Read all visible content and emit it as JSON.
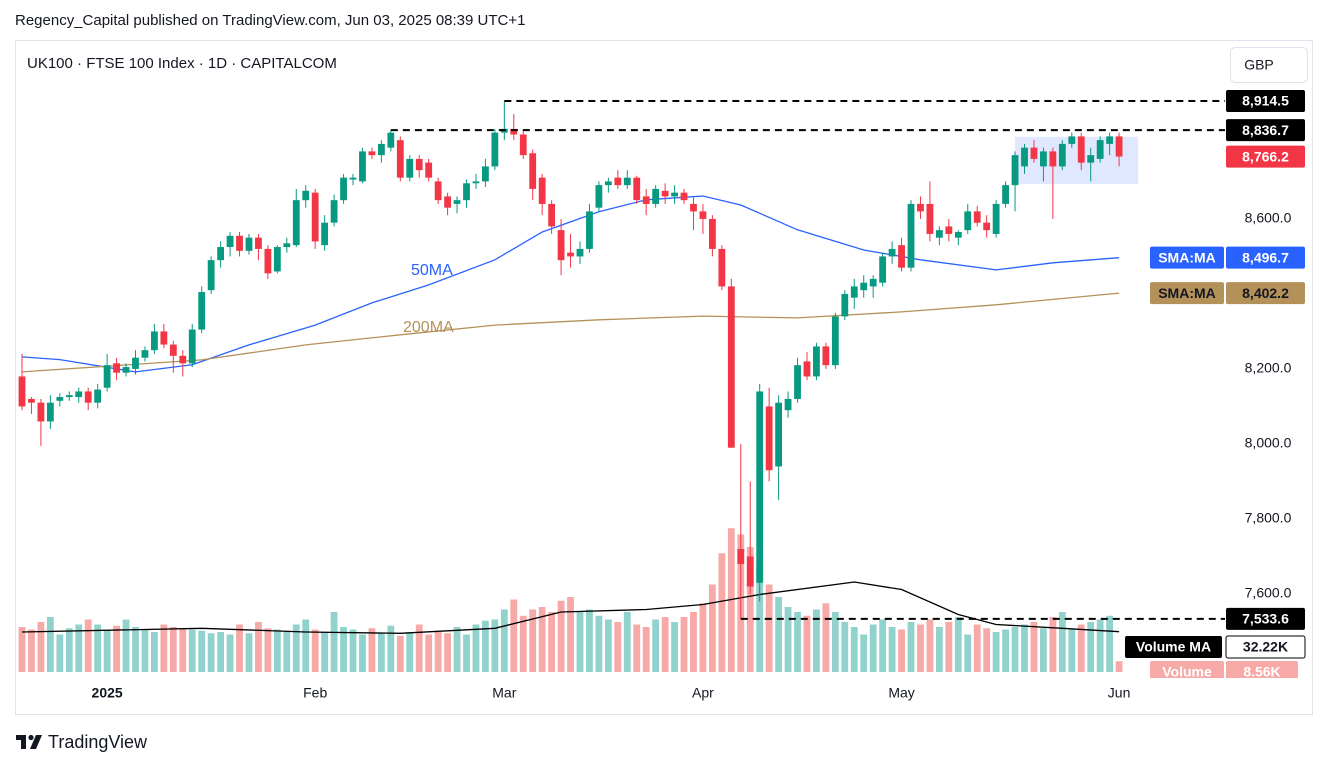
{
  "header": {
    "publisher": "Regency_Capital published on TradingView.com, Jun 03, 2025 08:39 UTC+1",
    "logo": "TradingView"
  },
  "chart_data": {
    "type": "candlestick",
    "title": "UK100 · FTSE 100 Index · 1D · CAPITALCOM",
    "currency": "GBP",
    "colors": {
      "up": "#089981",
      "down": "#f23645",
      "volume_up": "#92d2cc",
      "volume_down": "#f7a9a7"
    },
    "grid": false,
    "xlim": [
      -0.74,
      127.2
    ],
    "ylim": [
      7392,
      9077
    ],
    "xticks": [
      {
        "value": 9,
        "label": "2025"
      },
      {
        "value": 31,
        "label": "Feb"
      },
      {
        "value": 51,
        "label": "Mar"
      },
      {
        "value": 72,
        "label": "Apr"
      },
      {
        "value": 93,
        "label": "May"
      },
      {
        "value": 116,
        "label": "Jun"
      }
    ],
    "yticks": [
      {
        "value": 7600,
        "label": "7,600.0"
      },
      {
        "value": 7800,
        "label": "7,800.0"
      },
      {
        "value": 8000,
        "label": "8,000.0"
      },
      {
        "value": 8200,
        "label": "8,200.0"
      },
      {
        "value": 8600,
        "label": "8,600.0"
      }
    ],
    "ohlc": [
      [
        8180,
        8240,
        8090,
        8100
      ],
      [
        8120,
        8125,
        8080,
        8110
      ],
      [
        8110,
        8120,
        7995,
        8060
      ],
      [
        8060,
        8130,
        8040,
        8110
      ],
      [
        8115,
        8135,
        8100,
        8125
      ],
      [
        8125,
        8140,
        8115,
        8130
      ],
      [
        8125,
        8150,
        8110,
        8140
      ],
      [
        8140,
        8150,
        8090,
        8110
      ],
      [
        8110,
        8160,
        8095,
        8145
      ],
      [
        8150,
        8240,
        8140,
        8210
      ],
      [
        8215,
        8230,
        8170,
        8190
      ],
      [
        8190,
        8215,
        8180,
        8205
      ],
      [
        8200,
        8250,
        8185,
        8230
      ],
      [
        8230,
        8260,
        8220,
        8250
      ],
      [
        8250,
        8320,
        8240,
        8300
      ],
      [
        8300,
        8320,
        8255,
        8265
      ],
      [
        8265,
        8275,
        8190,
        8235
      ],
      [
        8235,
        8250,
        8180,
        8215
      ],
      [
        8215,
        8320,
        8205,
        8305
      ],
      [
        8305,
        8420,
        8295,
        8405
      ],
      [
        8410,
        8500,
        8400,
        8490
      ],
      [
        8490,
        8540,
        8470,
        8525
      ],
      [
        8525,
        8565,
        8500,
        8555
      ],
      [
        8555,
        8565,
        8500,
        8515
      ],
      [
        8515,
        8560,
        8505,
        8550
      ],
      [
        8550,
        8560,
        8490,
        8520
      ],
      [
        8520,
        8530,
        8440,
        8455
      ],
      [
        8460,
        8530,
        8455,
        8525
      ],
      [
        8525,
        8550,
        8510,
        8535
      ],
      [
        8530,
        8680,
        8525,
        8650
      ],
      [
        8650,
        8690,
        8630,
        8675
      ],
      [
        8670,
        8680,
        8520,
        8540
      ],
      [
        8530,
        8610,
        8515,
        8590
      ],
      [
        8590,
        8665,
        8580,
        8650
      ],
      [
        8650,
        8720,
        8640,
        8710
      ],
      [
        8705,
        8720,
        8690,
        8710
      ],
      [
        8700,
        8790,
        8695,
        8780
      ],
      [
        8780,
        8790,
        8760,
        8770
      ],
      [
        8770,
        8810,
        8750,
        8800
      ],
      [
        8790,
        8837,
        8780,
        8830
      ],
      [
        8810,
        8820,
        8700,
        8710
      ],
      [
        8710,
        8770,
        8700,
        8760
      ],
      [
        8760,
        8770,
        8710,
        8730
      ],
      [
        8750,
        8760,
        8700,
        8710
      ],
      [
        8700,
        8710,
        8640,
        8650
      ],
      [
        8660,
        8670,
        8610,
        8630
      ],
      [
        8640,
        8660,
        8615,
        8650
      ],
      [
        8650,
        8705,
        8630,
        8695
      ],
      [
        8695,
        8720,
        8680,
        8700
      ],
      [
        8700,
        8760,
        8685,
        8740
      ],
      [
        8740,
        8840,
        8730,
        8830
      ],
      [
        8830,
        8914.5,
        8810,
        8840
      ],
      [
        8840,
        8880,
        8810,
        8825
      ],
      [
        8825,
        8835,
        8760,
        8770
      ],
      [
        8775,
        8785,
        8650,
        8680
      ],
      [
        8710,
        8720,
        8610,
        8640
      ],
      [
        8640,
        8650,
        8560,
        8580
      ],
      [
        8570,
        8600,
        8450,
        8490
      ],
      [
        8510,
        8560,
        8470,
        8500
      ],
      [
        8500,
        8540,
        8480,
        8520
      ],
      [
        8520,
        8640,
        8510,
        8620
      ],
      [
        8630,
        8700,
        8620,
        8690
      ],
      [
        8690,
        8710,
        8670,
        8700
      ],
      [
        8710,
        8730,
        8680,
        8690
      ],
      [
        8690,
        8730,
        8680,
        8710
      ],
      [
        8710,
        8715,
        8640,
        8650
      ],
      [
        8660,
        8680,
        8610,
        8640
      ],
      [
        8640,
        8690,
        8630,
        8680
      ],
      [
        8675,
        8695,
        8640,
        8660
      ],
      [
        8660,
        8690,
        8640,
        8670
      ],
      [
        8670,
        8680,
        8640,
        8650
      ],
      [
        8640,
        8660,
        8570,
        8620
      ],
      [
        8620,
        8640,
        8560,
        8600
      ],
      [
        8600,
        8610,
        8500,
        8520
      ],
      [
        8520,
        8530,
        8410,
        8420
      ],
      [
        8420,
        8440,
        7990,
        7990
      ],
      [
        7720,
        8000,
        7533.6,
        7680
      ],
      [
        7700,
        7900,
        7600,
        7620
      ],
      [
        7630,
        8160,
        7580,
        8140
      ],
      [
        8100,
        8150,
        7900,
        7930
      ],
      [
        7940,
        8130,
        7850,
        8110
      ],
      [
        8090,
        8140,
        8070,
        8120
      ],
      [
        8120,
        8230,
        8110,
        8210
      ],
      [
        8220,
        8245,
        8170,
        8180
      ],
      [
        8180,
        8270,
        8170,
        8260
      ],
      [
        8260,
        8270,
        8200,
        8210
      ],
      [
        8210,
        8350,
        8200,
        8340
      ],
      [
        8340,
        8410,
        8330,
        8400
      ],
      [
        8390,
        8440,
        8360,
        8420
      ],
      [
        8410,
        8450,
        8390,
        8430
      ],
      [
        8420,
        8450,
        8390,
        8440
      ],
      [
        8430,
        8510,
        8420,
        8500
      ],
      [
        8500,
        8540,
        8480,
        8520
      ],
      [
        8530,
        8550,
        8460,
        8470
      ],
      [
        8470,
        8650,
        8460,
        8640
      ],
      [
        8640,
        8660,
        8600,
        8620
      ],
      [
        8640,
        8700,
        8540,
        8560
      ],
      [
        8550,
        8580,
        8530,
        8570
      ],
      [
        8580,
        8600,
        8540,
        8560
      ],
      [
        8550,
        8570,
        8530,
        8565
      ],
      [
        8570,
        8640,
        8560,
        8620
      ],
      [
        8620,
        8635,
        8580,
        8590
      ],
      [
        8590,
        8610,
        8550,
        8570
      ],
      [
        8560,
        8650,
        8550,
        8640
      ],
      [
        8640,
        8700,
        8630,
        8690
      ],
      [
        8690,
        8780,
        8620,
        8770
      ],
      [
        8740,
        8800,
        8720,
        8790
      ],
      [
        8790,
        8810,
        8750,
        8760
      ],
      [
        8740,
        8790,
        8700,
        8780
      ],
      [
        8780,
        8790,
        8600,
        8740
      ],
      [
        8740,
        8810,
        8730,
        8800
      ],
      [
        8800,
        8830,
        8790,
        8820
      ],
      [
        8820,
        8830,
        8730,
        8750
      ],
      [
        8750,
        8790,
        8700,
        8770
      ],
      [
        8760,
        8820,
        8750,
        8810
      ],
      [
        8800,
        8830,
        8770,
        8820
      ],
      [
        8820,
        8830,
        8740,
        8766.2
      ]
    ],
    "last_price_label": "8,766.2",
    "volume": {
      "name": "Volume",
      "last_label": "8.56K",
      "values": [
        36000,
        34000,
        40000,
        44000,
        30000,
        35000,
        38000,
        42000,
        38000,
        33000,
        37000,
        42000,
        36000,
        34000,
        32000,
        38000,
        36000,
        35000,
        34000,
        33000,
        31000,
        32000,
        30000,
        38000,
        31000,
        40000,
        35000,
        34000,
        33000,
        38000,
        42000,
        34000,
        32000,
        48000,
        36000,
        34000,
        30000,
        35000,
        31000,
        37000,
        29000,
        32000,
        38000,
        30000,
        33000,
        31000,
        36000,
        30000,
        38000,
        41000,
        42000,
        50000,
        58000,
        45000,
        50000,
        52000,
        48000,
        57000,
        60000,
        48000,
        50000,
        45000,
        42000,
        40000,
        48000,
        38000,
        36000,
        42000,
        44000,
        40000,
        44000,
        48000,
        55000,
        70000,
        95000,
        115000,
        110000,
        100000,
        85000,
        70000,
        60000,
        52000,
        48000,
        45000,
        50000,
        55000,
        48000,
        40000,
        36000,
        30000,
        38000,
        42000,
        36000,
        34000,
        40000,
        38000,
        42000,
        36000,
        40000,
        44000,
        30000,
        38000,
        35000,
        32000,
        34000,
        36000,
        38000,
        40000,
        35000,
        44000,
        48000,
        34000,
        38000,
        40000,
        42000,
        45000,
        8560
      ]
    },
    "volume_ma": {
      "name": "Volume MA",
      "last_label": "32.22K",
      "color": "#000000",
      "x": [
        0,
        19,
        30,
        40,
        50,
        57,
        66,
        72,
        78,
        88,
        93,
        99,
        103,
        110,
        116
      ],
      "values": [
        32000,
        35000,
        32000,
        31000,
        35000,
        48000,
        50000,
        54000,
        62000,
        72000,
        66000,
        46000,
        38000,
        35000,
        32220
      ]
    },
    "indicators": [
      {
        "name": "SMA:MA",
        "label": "50MA",
        "color": "#2962ff",
        "last_label": "8,496.7",
        "x": [
          0,
          4,
          12,
          18,
          24,
          31,
          37,
          43,
          50,
          55,
          61,
          66,
          72,
          76,
          82,
          89,
          95,
          103,
          109,
          116
        ],
        "values": [
          8232,
          8225,
          8192,
          8211,
          8264,
          8317,
          8376,
          8424,
          8491,
          8565,
          8619,
          8651,
          8661,
          8637,
          8571,
          8517,
          8491,
          8464,
          8483,
          8496.7
        ]
      },
      {
        "name": "SMA:MA",
        "label": "200MA",
        "color": "#b5915a",
        "last_label": "8,402.2",
        "x": [
          0,
          19,
          30,
          40,
          50,
          61,
          72,
          82,
          93,
          103,
          116
        ],
        "values": [
          8192,
          8224,
          8264,
          8291,
          8317,
          8331,
          8341,
          8336,
          8352,
          8371,
          8402.2
        ]
      }
    ],
    "levels": [
      {
        "value": 8914.5,
        "label": "8,914.5",
        "start": 51
      },
      {
        "value": 8836.7,
        "label": "8,836.7",
        "start": 39
      },
      {
        "value": 7533.6,
        "label": "7,533.6",
        "start": 76
      }
    ],
    "range_box": {
      "x": [
        105,
        118
      ],
      "y": [
        8693,
        8819
      ],
      "color": "#2962ff"
    }
  }
}
